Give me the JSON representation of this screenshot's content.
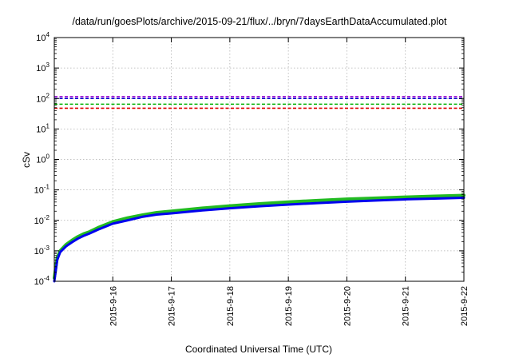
{
  "chart_data": {
    "type": "line",
    "title": "/data/run/goesPlots/archive/2015-09-21/flux/../bryn/7daysEarthDataAccumulated.plot",
    "xlabel": "Coordinated Universal Time (UTC)",
    "ylabel": "cSv",
    "y_scale": "log",
    "ylim": [
      0.0001,
      10000
    ],
    "xlim": [
      "2015-09-15",
      "2015-09-22"
    ],
    "grid": true,
    "x_tick_labels": [
      "2015-9-16",
      "2015-9-17",
      "2015-9-18",
      "2015-9-19",
      "2015-9-20",
      "2015-9-21",
      "2015-9-22"
    ],
    "y_ticks": [
      {
        "base": "10",
        "exp": "-4",
        "value": 0.0001
      },
      {
        "base": "10",
        "exp": "-3",
        "value": 0.001
      },
      {
        "base": "10",
        "exp": "-2",
        "value": 0.01
      },
      {
        "base": "10",
        "exp": "-1",
        "value": 0.1
      },
      {
        "base": "10",
        "exp": "0",
        "value": 1
      },
      {
        "base": "10",
        "exp": "1",
        "value": 10
      },
      {
        "base": "10",
        "exp": "2",
        "value": 100
      },
      {
        "base": "10",
        "exp": "3",
        "value": 1000
      },
      {
        "base": "10",
        "exp": "4",
        "value": 10000
      }
    ],
    "reference_lines": [
      {
        "value": 115,
        "color": "#9400d3",
        "style": "dashed"
      },
      {
        "value": 100,
        "color": "#0000cc",
        "style": "dashed"
      },
      {
        "value": 65,
        "color": "#00b000",
        "style": "dashed"
      },
      {
        "value": 48,
        "color": "#e00000",
        "style": "dashed"
      }
    ],
    "series": [
      {
        "color": "#22bb22",
        "width": 4,
        "x": [
          0.0,
          0.05,
          0.1,
          0.2,
          0.3,
          0.4,
          0.5,
          0.6,
          0.75,
          1.0,
          1.25,
          1.5,
          1.75,
          2.0,
          2.5,
          3.0,
          3.5,
          4.0,
          4.5,
          5.0,
          5.5,
          6.0,
          6.5,
          7.0
        ],
        "y": [
          0.00013,
          0.0006,
          0.001,
          0.0016,
          0.0022,
          0.0029,
          0.0036,
          0.0042,
          0.0058,
          0.009,
          0.012,
          0.015,
          0.018,
          0.02,
          0.025,
          0.03,
          0.035,
          0.04,
          0.045,
          0.05,
          0.054,
          0.058,
          0.062,
          0.066
        ]
      },
      {
        "color": "#0000ee",
        "width": 3,
        "x": [
          0.0,
          0.05,
          0.1,
          0.2,
          0.3,
          0.4,
          0.5,
          0.6,
          0.75,
          1.0,
          1.25,
          1.5,
          1.75,
          2.0,
          2.5,
          3.0,
          3.5,
          4.0,
          4.5,
          5.0,
          5.5,
          6.0,
          6.5,
          7.0
        ],
        "y": [
          0.0001,
          0.0005,
          0.0009,
          0.0014,
          0.0019,
          0.0025,
          0.0031,
          0.0037,
          0.005,
          0.0078,
          0.01,
          0.013,
          0.0155,
          0.017,
          0.021,
          0.025,
          0.029,
          0.033,
          0.037,
          0.041,
          0.045,
          0.049,
          0.052,
          0.055
        ]
      }
    ]
  }
}
